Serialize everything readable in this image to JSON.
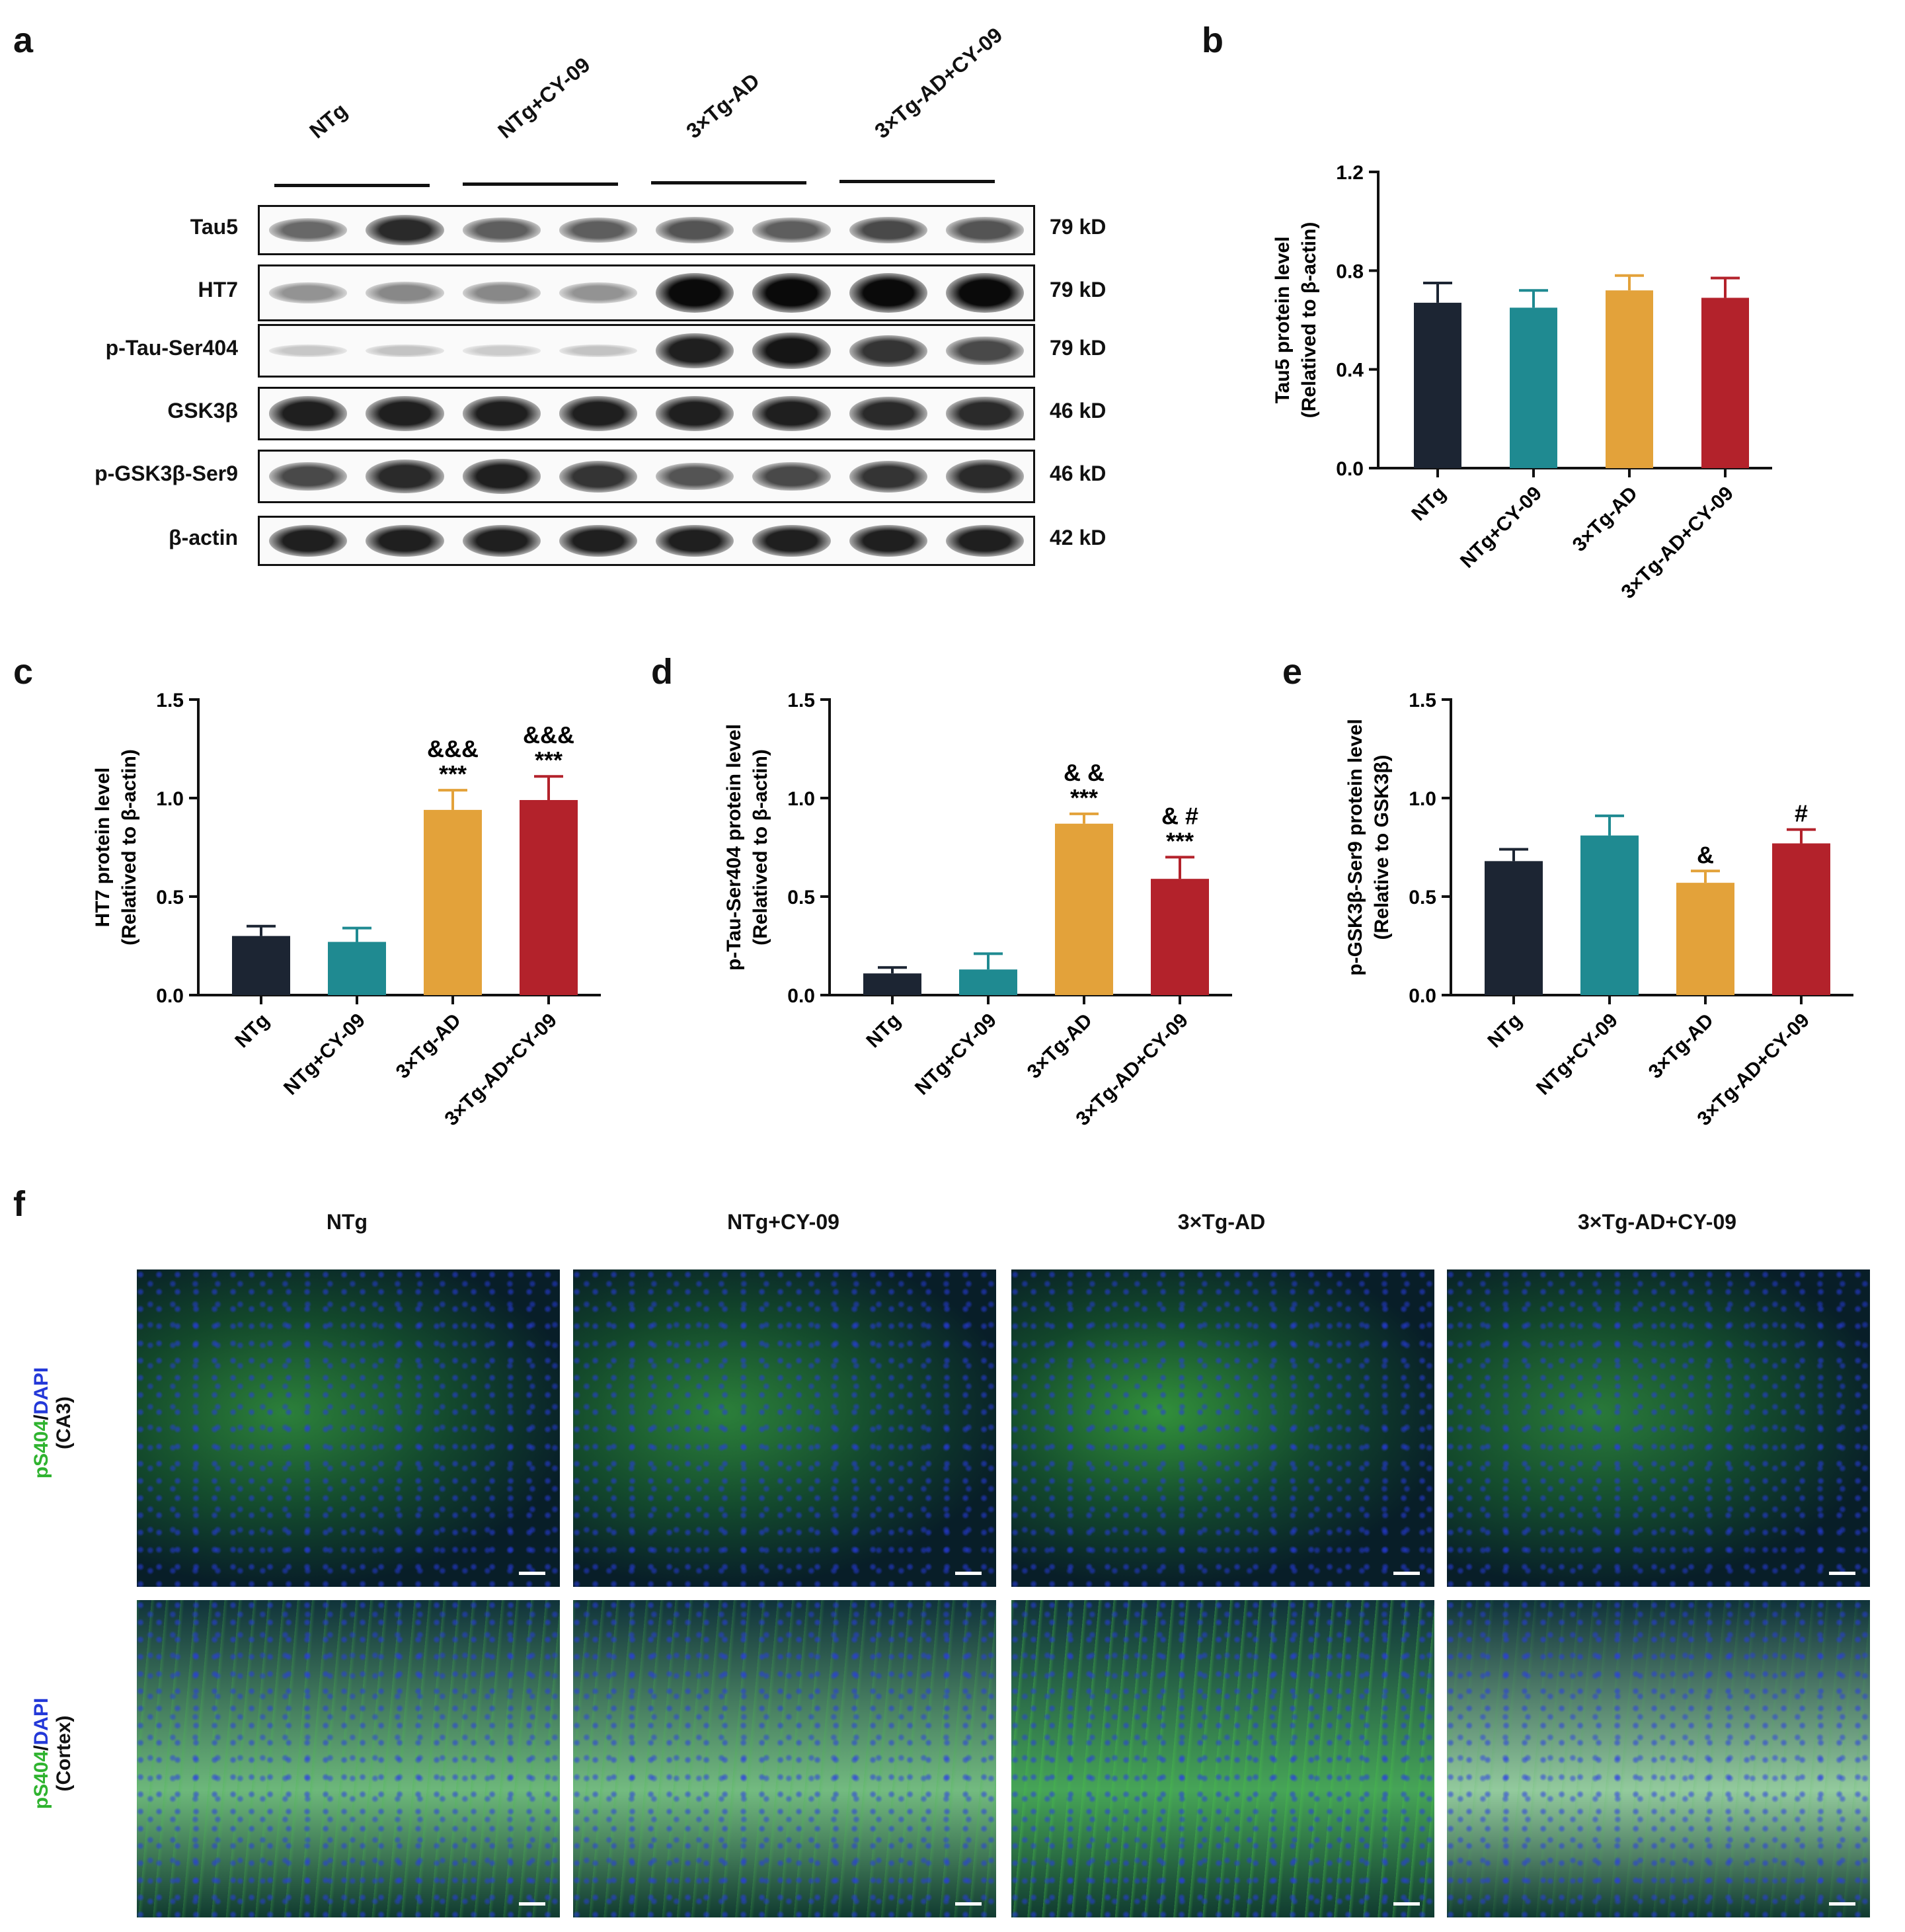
{
  "panel_letters": {
    "a": "a",
    "b": "b",
    "c": "c",
    "d": "d",
    "e": "e",
    "f": "f"
  },
  "groups": [
    "NTg",
    "NTg+CY-09",
    "3×Tg-AD",
    "3×Tg-AD+CY-09"
  ],
  "colors": {
    "NTg": "#1c2533",
    "NTg+CY-09": "#1f8a91",
    "3×Tg-AD": "#e3a23a",
    "3×Tg-AD+CY-09": "#b3222b",
    "fluor_green": "#2fb32f",
    "fluor_blue": "#2338d8"
  },
  "western_blot": {
    "rows": [
      {
        "name": "Tau5",
        "size": "79 kD",
        "intensity": [
          0.55,
          0.85,
          0.6,
          0.6,
          0.65,
          0.6,
          0.7,
          0.65
        ]
      },
      {
        "name": "HT7",
        "size": "79 kD",
        "intensity": [
          0.35,
          0.4,
          0.4,
          0.35,
          1.0,
          1.0,
          1.0,
          1.0
        ]
      },
      {
        "name": "p-Tau-Ser404",
        "size": "79 kD",
        "intensity": [
          0.1,
          0.12,
          0.08,
          0.12,
          0.9,
          0.95,
          0.8,
          0.7
        ]
      },
      {
        "name": "GSK3β",
        "size": "46 kD",
        "intensity": [
          0.9,
          0.9,
          0.9,
          0.9,
          0.9,
          0.9,
          0.85,
          0.85
        ]
      },
      {
        "name": "p-GSK3β-Ser9",
        "size": "46 kD",
        "intensity": [
          0.7,
          0.85,
          0.9,
          0.8,
          0.65,
          0.7,
          0.8,
          0.85
        ]
      },
      {
        "name": "β-actin",
        "size": "42 kD",
        "intensity": [
          0.9,
          0.9,
          0.9,
          0.9,
          0.9,
          0.9,
          0.9,
          0.9
        ]
      }
    ]
  },
  "chart_data": [
    {
      "panel": "b",
      "type": "bar",
      "categories": [
        "NTg",
        "NTg+CY-09",
        "3×Tg-AD",
        "3×Tg-AD+CY-09"
      ],
      "values": [
        0.67,
        0.65,
        0.72,
        0.69
      ],
      "errors": [
        0.08,
        0.07,
        0.06,
        0.08
      ],
      "annotations": [
        "",
        "",
        "",
        ""
      ],
      "ylabel_line1": "Tau5 protein level",
      "ylabel_line2": "(Relatived to β-actin)",
      "ylim": [
        0,
        1.2
      ],
      "yticks": [
        "0.0",
        "0.4",
        "0.8",
        "1.2"
      ],
      "ytick_values": [
        0,
        0.4,
        0.8,
        1.2
      ]
    },
    {
      "panel": "c",
      "type": "bar",
      "categories": [
        "NTg",
        "NTg+CY-09",
        "3×Tg-AD",
        "3×Tg-AD+CY-09"
      ],
      "values": [
        0.3,
        0.27,
        0.94,
        0.99
      ],
      "errors": [
        0.05,
        0.07,
        0.1,
        0.12
      ],
      "annotations": [
        "",
        "",
        "&&&\n***",
        "&&&\n***"
      ],
      "ylabel_line1": "HT7 protein level",
      "ylabel_line2": "(Relatived to β-actin)",
      "ylim": [
        0,
        1.5
      ],
      "yticks": [
        "0.0",
        "0.5",
        "1.0",
        "1.5"
      ],
      "ytick_values": [
        0,
        0.5,
        1.0,
        1.5
      ]
    },
    {
      "panel": "d",
      "type": "bar",
      "categories": [
        "NTg",
        "NTg+CY-09",
        "3×Tg-AD",
        "3×Tg-AD+CY-09"
      ],
      "values": [
        0.11,
        0.13,
        0.87,
        0.59
      ],
      "errors": [
        0.03,
        0.08,
        0.05,
        0.11
      ],
      "annotations": [
        "",
        "",
        "& &\n***",
        "& #\n***"
      ],
      "ylabel_line1": "p-Tau-Ser404 protein level",
      "ylabel_line2": "(Relatived to β-actin)",
      "ylim": [
        0,
        1.5
      ],
      "yticks": [
        "0.0",
        "0.5",
        "1.0",
        "1.5"
      ],
      "ytick_values": [
        0,
        0.5,
        1.0,
        1.5
      ]
    },
    {
      "panel": "e",
      "type": "bar",
      "categories": [
        "NTg",
        "NTg+CY-09",
        "3×Tg-AD",
        "3×Tg-AD+CY-09"
      ],
      "values": [
        0.68,
        0.81,
        0.57,
        0.77
      ],
      "errors": [
        0.06,
        0.1,
        0.06,
        0.07
      ],
      "annotations": [
        "",
        "",
        "&",
        "#"
      ],
      "ylabel_line1": "p-GSK3β-Ser9 protein level",
      "ylabel_line2": "(Relative to GSK3β)",
      "ylim": [
        0,
        1.5
      ],
      "yticks": [
        "0.0",
        "0.5",
        "1.0",
        "1.5"
      ],
      "ytick_values": [
        0,
        0.5,
        1.0,
        1.5
      ]
    }
  ],
  "fluorescence": {
    "titles": [
      "NTg",
      "NTg+CY-09",
      "3×Tg-AD",
      "3×Tg-AD+CY-09"
    ],
    "rows": [
      {
        "marker": "pS404",
        "separator": "/",
        "stain": "DAPI",
        "region": "(CA3)",
        "green_level": [
          0.45,
          0.45,
          0.7,
          0.35
        ]
      },
      {
        "marker": "pS404",
        "separator": "/",
        "stain": "DAPI",
        "region": "(Cortex)",
        "green_level": [
          0.55,
          0.5,
          0.85,
          0.25
        ]
      }
    ]
  }
}
